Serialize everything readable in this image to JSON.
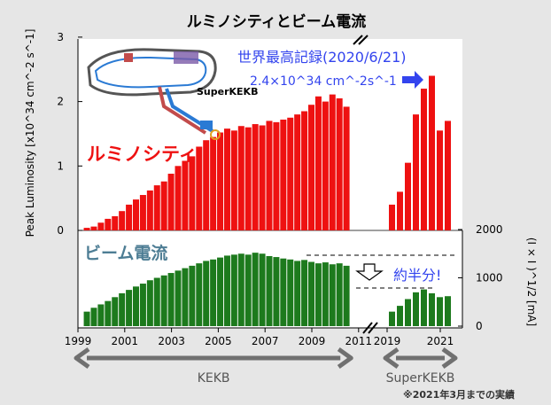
{
  "chart_data": {
    "type": "bar",
    "title": "ルミノシティとビーム電流",
    "ylabel_left": "Peak Luminosity [x10^34 cm^-2 s^-1]",
    "ylabel_right": "(I × I )^1/2 [mA]",
    "left_ticks": [
      "0",
      "1",
      "2",
      "3"
    ],
    "right_ticks": [
      "0",
      "1000",
      "2000"
    ],
    "x_ticks": [
      "1999",
      "2001",
      "2003",
      "2005",
      "2007",
      "2009",
      "2011",
      "2019",
      "2021"
    ],
    "luminosity_label": "ルミノシティ",
    "current_label": "ビーム電流",
    "record_text": "世界最高記録(2020/6/21)",
    "record_value": "2.4×10^34 cm^-2s^-1",
    "half_note": "約半分!",
    "superkekb_label": "SuperKEKB",
    "ranges": [
      {
        "label": "KEKB",
        "from": 1999.0,
        "to": 2010.6
      },
      {
        "label": "SuperKEKB",
        "from": 2019.0,
        "to": 2021.5
      }
    ],
    "footnote": "※2021年3月までの実績",
    "luminosity": [
      {
        "x": 1999.4,
        "v": 0.04
      },
      {
        "x": 1999.7,
        "v": 0.06
      },
      {
        "x": 2000.0,
        "v": 0.12
      },
      {
        "x": 2000.3,
        "v": 0.18
      },
      {
        "x": 2000.6,
        "v": 0.22
      },
      {
        "x": 2000.9,
        "v": 0.3
      },
      {
        "x": 2001.2,
        "v": 0.4
      },
      {
        "x": 2001.5,
        "v": 0.48
      },
      {
        "x": 2001.8,
        "v": 0.55
      },
      {
        "x": 2002.1,
        "v": 0.62
      },
      {
        "x": 2002.4,
        "v": 0.7
      },
      {
        "x": 2002.7,
        "v": 0.76
      },
      {
        "x": 2003.0,
        "v": 0.88
      },
      {
        "x": 2003.3,
        "v": 1.0
      },
      {
        "x": 2003.6,
        "v": 1.08
      },
      {
        "x": 2003.9,
        "v": 1.15
      },
      {
        "x": 2004.2,
        "v": 1.3
      },
      {
        "x": 2004.5,
        "v": 1.4
      },
      {
        "x": 2004.8,
        "v": 1.45
      },
      {
        "x": 2005.1,
        "v": 1.52
      },
      {
        "x": 2005.4,
        "v": 1.58
      },
      {
        "x": 2005.7,
        "v": 1.55
      },
      {
        "x": 2006.0,
        "v": 1.62
      },
      {
        "x": 2006.3,
        "v": 1.6
      },
      {
        "x": 2006.6,
        "v": 1.65
      },
      {
        "x": 2006.9,
        "v": 1.63
      },
      {
        "x": 2007.2,
        "v": 1.7
      },
      {
        "x": 2007.5,
        "v": 1.68
      },
      {
        "x": 2007.8,
        "v": 1.72
      },
      {
        "x": 2008.1,
        "v": 1.75
      },
      {
        "x": 2008.4,
        "v": 1.8
      },
      {
        "x": 2008.7,
        "v": 1.85
      },
      {
        "x": 2009.0,
        "v": 1.95
      },
      {
        "x": 2009.3,
        "v": 2.08
      },
      {
        "x": 2009.6,
        "v": 2.0
      },
      {
        "x": 2009.9,
        "v": 2.11
      },
      {
        "x": 2010.2,
        "v": 2.05
      },
      {
        "x": 2010.5,
        "v": 1.92
      },
      {
        "x": 2019.2,
        "v": 0.4
      },
      {
        "x": 2019.5,
        "v": 0.6
      },
      {
        "x": 2019.8,
        "v": 1.05
      },
      {
        "x": 2020.1,
        "v": 1.8
      },
      {
        "x": 2020.4,
        "v": 2.2
      },
      {
        "x": 2020.7,
        "v": 2.4
      },
      {
        "x": 2021.0,
        "v": 1.55
      },
      {
        "x": 2021.3,
        "v": 1.7
      }
    ],
    "current": [
      {
        "x": 1999.4,
        "v": 300
      },
      {
        "x": 1999.7,
        "v": 380
      },
      {
        "x": 2000.0,
        "v": 450
      },
      {
        "x": 2000.3,
        "v": 520
      },
      {
        "x": 2000.6,
        "v": 600
      },
      {
        "x": 2000.9,
        "v": 680
      },
      {
        "x": 2001.2,
        "v": 750
      },
      {
        "x": 2001.5,
        "v": 820
      },
      {
        "x": 2001.8,
        "v": 880
      },
      {
        "x": 2002.1,
        "v": 950
      },
      {
        "x": 2002.4,
        "v": 1000
      },
      {
        "x": 2002.7,
        "v": 1050
      },
      {
        "x": 2003.0,
        "v": 1100
      },
      {
        "x": 2003.3,
        "v": 1150
      },
      {
        "x": 2003.6,
        "v": 1200
      },
      {
        "x": 2003.9,
        "v": 1250
      },
      {
        "x": 2004.2,
        "v": 1300
      },
      {
        "x": 2004.5,
        "v": 1350
      },
      {
        "x": 2004.8,
        "v": 1380
      },
      {
        "x": 2005.1,
        "v": 1420
      },
      {
        "x": 2005.4,
        "v": 1460
      },
      {
        "x": 2005.7,
        "v": 1480
      },
      {
        "x": 2006.0,
        "v": 1500
      },
      {
        "x": 2006.3,
        "v": 1480
      },
      {
        "x": 2006.6,
        "v": 1520
      },
      {
        "x": 2006.9,
        "v": 1500
      },
      {
        "x": 2007.2,
        "v": 1450
      },
      {
        "x": 2007.5,
        "v": 1430
      },
      {
        "x": 2007.8,
        "v": 1400
      },
      {
        "x": 2008.1,
        "v": 1380
      },
      {
        "x": 2008.4,
        "v": 1350
      },
      {
        "x": 2008.7,
        "v": 1370
      },
      {
        "x": 2009.0,
        "v": 1330
      },
      {
        "x": 2009.3,
        "v": 1300
      },
      {
        "x": 2009.6,
        "v": 1320
      },
      {
        "x": 2009.9,
        "v": 1280
      },
      {
        "x": 2010.2,
        "v": 1300
      },
      {
        "x": 2010.5,
        "v": 1250
      },
      {
        "x": 2019.2,
        "v": 300
      },
      {
        "x": 2019.5,
        "v": 420
      },
      {
        "x": 2019.8,
        "v": 560
      },
      {
        "x": 2020.1,
        "v": 700
      },
      {
        "x": 2020.4,
        "v": 760
      },
      {
        "x": 2020.7,
        "v": 680
      },
      {
        "x": 2021.0,
        "v": 600
      },
      {
        "x": 2021.3,
        "v": 620
      }
    ]
  }
}
